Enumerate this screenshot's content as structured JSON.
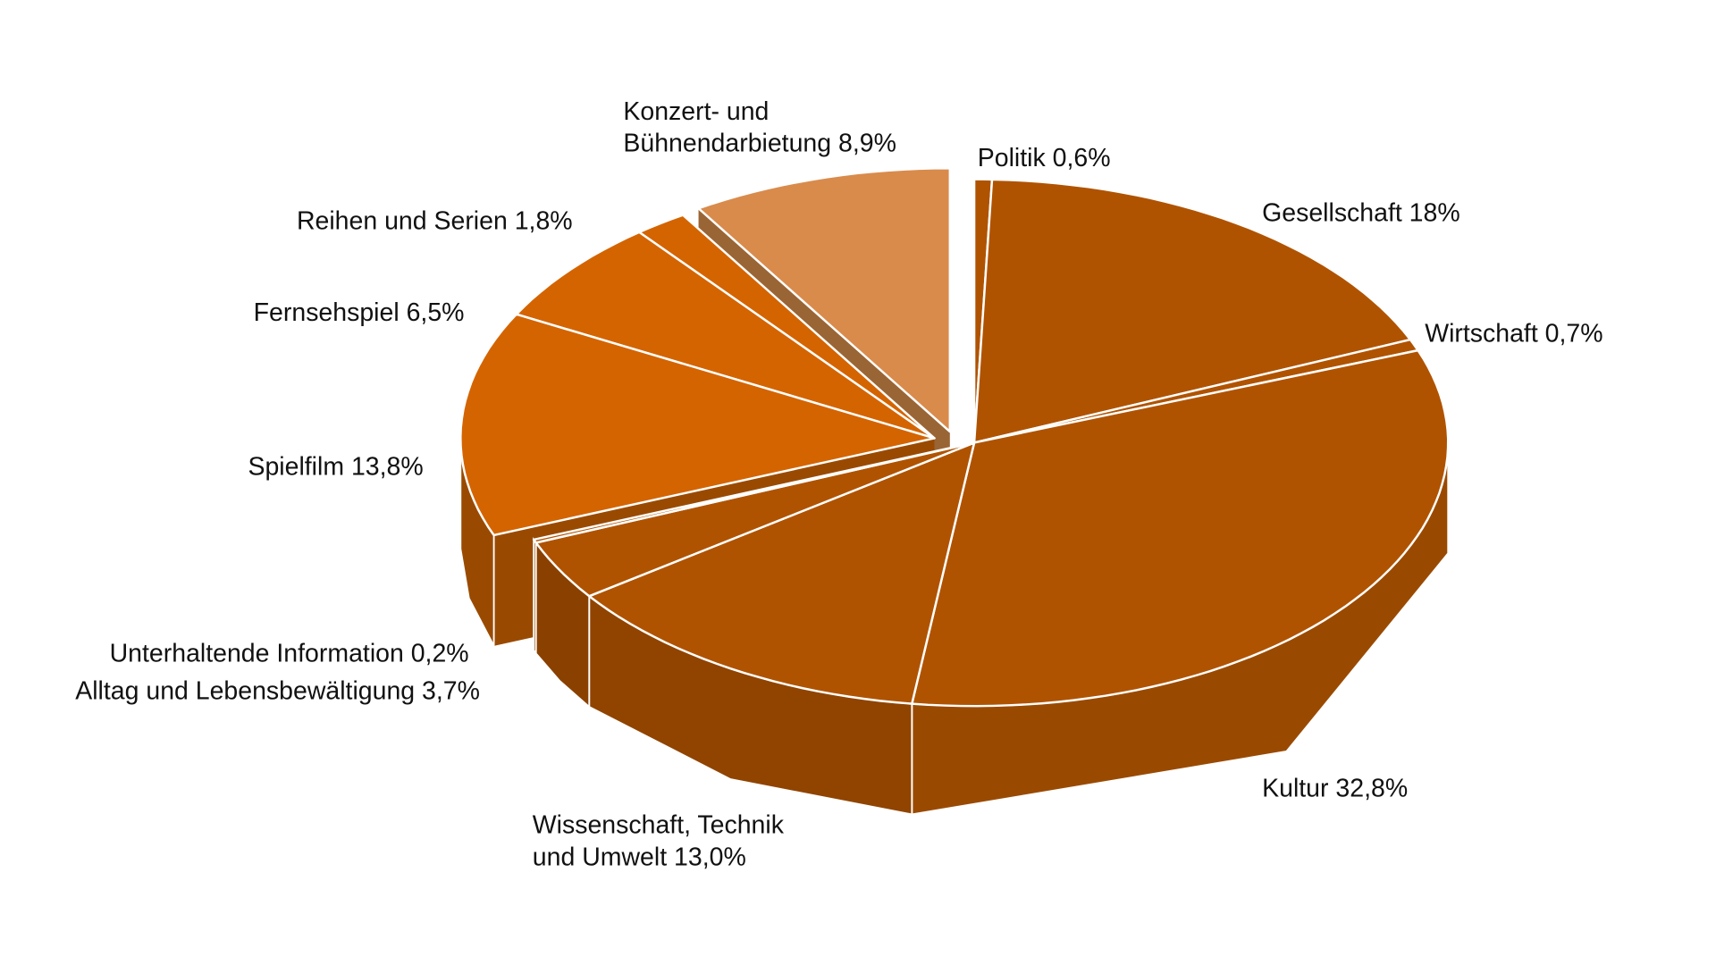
{
  "chart_data": {
    "type": "pie",
    "style": "3d-exploded",
    "title": "",
    "legend": "none (direct labels)",
    "slices": [
      {
        "name": "Politik",
        "value": 0.6,
        "label": [
          "Politik 0,6%"
        ],
        "color": "#b05300",
        "side": "#8f4300"
      },
      {
        "name": "Gesellschaft",
        "value": 18.0,
        "label": [
          "Gesellschaft 18%"
        ],
        "color": "#b05300",
        "side": "#8f4300"
      },
      {
        "name": "Wirtschaft",
        "value": 0.7,
        "label": [
          "Wirtschaft 0,7%"
        ],
        "color": "#b05300",
        "side": "#8f4300"
      },
      {
        "name": "Kultur",
        "value": 32.8,
        "label": [
          "Kultur 32,8%"
        ],
        "color": "#b05300",
        "side": "#9a4a00"
      },
      {
        "name": "Wissenschaft, Technik und Umwelt",
        "value": 13.0,
        "label": [
          "Wissenschaft, Technik",
          "und Umwelt 13,0%"
        ],
        "color": "#b05300",
        "side": "#904400"
      },
      {
        "name": "Alltag und Lebensbewältigung",
        "value": 3.7,
        "label": [
          "Alltag und Lebensbewältigung 3,7%"
        ],
        "color": "#b05300",
        "side": "#8a4100"
      },
      {
        "name": "Unterhaltende Information",
        "value": 0.2,
        "label": [
          "Unterhaltende Information 0,2%"
        ],
        "color": "#b05300",
        "side": "#8a4100"
      },
      {
        "name": "Spielfilm",
        "value": 13.8,
        "label": [
          "Spielfilm 13,8%"
        ],
        "color": "#d46400",
        "side": "#9a4a00"
      },
      {
        "name": "Fernsehspiel",
        "value": 6.5,
        "label": [
          "Fernsehspiel 6,5%"
        ],
        "color": "#d46400",
        "side": "#9a4a00"
      },
      {
        "name": "Reihen und Serien",
        "value": 1.8,
        "label": [
          "Reihen und Serien 1,8%"
        ],
        "color": "#d46400",
        "side": "#9a4a00"
      },
      {
        "name": "Konzert- und Bühnendarbietung",
        "value": 8.9,
        "label": [
          "Konzert- und",
          "Bühnendarbietung 8,9%"
        ],
        "color": "#d98b4c",
        "side": "#9a6535"
      }
    ]
  }
}
